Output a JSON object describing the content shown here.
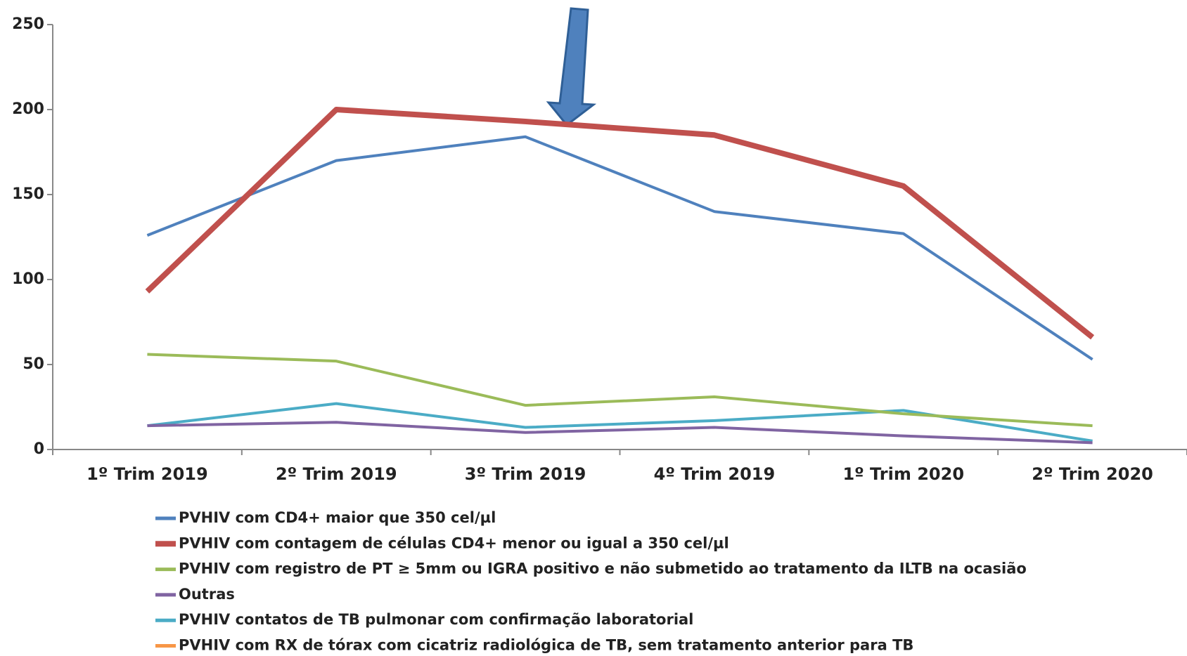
{
  "chart_data": {
    "type": "line",
    "categories": [
      "1º Trim 2019",
      "2º Trim 2019",
      "3º Trim 2019",
      "4º Trim 2019",
      "1º Trim 2020",
      "2º Trim 2020"
    ],
    "series": [
      {
        "name": "PVHIV com CD4+ maior que 350 cel/µl",
        "color": "#4f81bd",
        "values": [
          126,
          170,
          184,
          140,
          127,
          53
        ]
      },
      {
        "name": "PVHIV com contagem de células CD4+ menor ou igual a 350 cel/µl",
        "color": "#c0504d",
        "values": [
          93,
          200,
          193,
          185,
          155,
          66
        ]
      },
      {
        "name": "PVHIV com registro de PT ≥ 5mm ou IGRA positivo e não submetido ao tratamento da ILTB na ocasião",
        "color": "#9bbb59",
        "values": [
          56,
          52,
          26,
          31,
          21,
          14
        ]
      },
      {
        "name": "Outras",
        "color": "#8064a2",
        "values": [
          14,
          16,
          10,
          13,
          8,
          4
        ]
      },
      {
        "name": "PVHIV contatos de TB pulmonar com confirmação laboratorial",
        "color": "#4bacc6",
        "values": [
          14,
          27,
          13,
          17,
          23,
          5
        ]
      },
      {
        "name": "PVHIV com RX de tórax com cicatriz radiológica de TB, sem tratamento anterior para TB",
        "color": "#f79646",
        "values": [
          null,
          null,
          null,
          null,
          null,
          null
        ]
      }
    ],
    "ylim": [
      0,
      250
    ],
    "yticks": [
      0,
      50,
      100,
      150,
      200,
      250
    ],
    "grid": false
  }
}
